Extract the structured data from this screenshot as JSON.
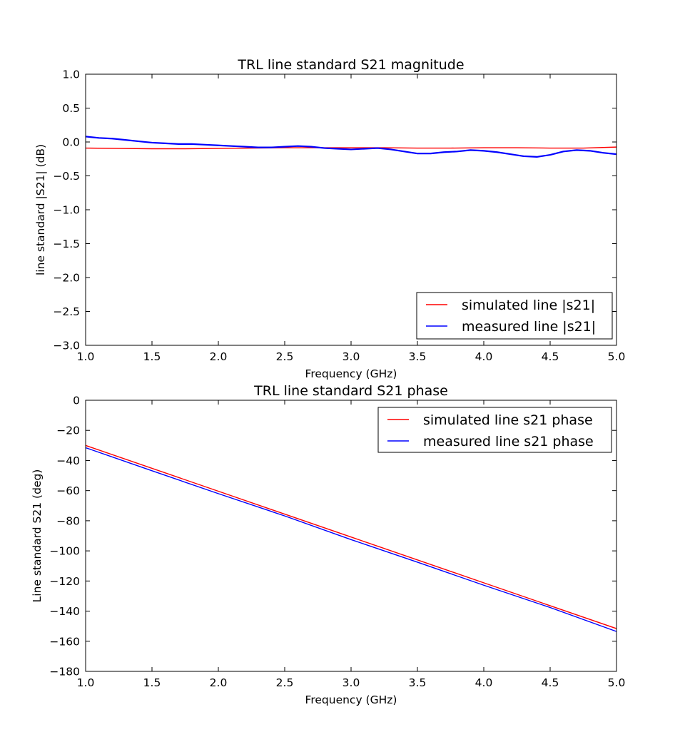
{
  "chart_data": [
    {
      "type": "line",
      "title": "TRL line standard S21 magnitude",
      "xlabel": "Frequency (GHz)",
      "ylabel": "line standard |S21| (dB)",
      "xlim": [
        1.0,
        5.0
      ],
      "ylim": [
        -3.0,
        1.0
      ],
      "xticks": [
        "1.0",
        "1.5",
        "2.0",
        "2.5",
        "3.0",
        "3.5",
        "4.0",
        "4.5",
        "5.0"
      ],
      "yticks": [
        "1.0",
        "0.5",
        "0.0",
        "−0.5",
        "−1.0",
        "−1.5",
        "−2.0",
        "−2.5",
        "−3.0"
      ],
      "grid": false,
      "legend_position": "lower-right",
      "series": [
        {
          "name": "simulated line |s21|",
          "color": "#ff0000",
          "x": [
            1.0,
            1.25,
            1.5,
            1.75,
            2.0,
            2.25,
            2.5,
            2.75,
            3.0,
            3.25,
            3.5,
            3.75,
            4.0,
            4.25,
            4.5,
            4.75,
            5.0
          ],
          "y": [
            -0.09,
            -0.095,
            -0.1,
            -0.1,
            -0.095,
            -0.09,
            -0.085,
            -0.085,
            -0.085,
            -0.085,
            -0.09,
            -0.09,
            -0.085,
            -0.085,
            -0.09,
            -0.09,
            -0.075
          ]
        },
        {
          "name": "measured line |s21|",
          "color": "#0000ff",
          "x": [
            1.0,
            1.1,
            1.2,
            1.3,
            1.4,
            1.5,
            1.6,
            1.7,
            1.8,
            1.9,
            2.0,
            2.1,
            2.2,
            2.3,
            2.4,
            2.5,
            2.6,
            2.7,
            2.8,
            2.9,
            3.0,
            3.1,
            3.2,
            3.3,
            3.4,
            3.5,
            3.6,
            3.7,
            3.8,
            3.9,
            4.0,
            4.1,
            4.2,
            4.3,
            4.4,
            4.5,
            4.6,
            4.7,
            4.8,
            4.9,
            5.0
          ],
          "y": [
            0.08,
            0.06,
            0.05,
            0.03,
            0.01,
            -0.01,
            -0.02,
            -0.03,
            -0.03,
            -0.04,
            -0.05,
            -0.06,
            -0.07,
            -0.08,
            -0.08,
            -0.07,
            -0.06,
            -0.07,
            -0.09,
            -0.1,
            -0.11,
            -0.1,
            -0.09,
            -0.11,
            -0.14,
            -0.17,
            -0.17,
            -0.15,
            -0.14,
            -0.12,
            -0.13,
            -0.15,
            -0.18,
            -0.21,
            -0.22,
            -0.19,
            -0.14,
            -0.12,
            -0.13,
            -0.16,
            -0.18
          ]
        }
      ]
    },
    {
      "type": "line",
      "title": "TRL line standard S21 phase",
      "xlabel": "Frequency (GHz)",
      "ylabel": "Line standard S21 (deg)",
      "xlim": [
        1.0,
        5.0
      ],
      "ylim": [
        -180,
        0
      ],
      "xticks": [
        "1.0",
        "1.5",
        "2.0",
        "2.5",
        "3.0",
        "3.5",
        "4.0",
        "4.5",
        "5.0"
      ],
      "yticks": [
        "0",
        "−20",
        "−40",
        "−60",
        "−80",
        "−100",
        "−120",
        "−140",
        "−160",
        "−180"
      ],
      "grid": false,
      "legend_position": "upper-right",
      "series": [
        {
          "name": "simulated line s21 phase",
          "color": "#ff0000",
          "x": [
            1.0,
            2.0,
            3.0,
            4.0,
            5.0
          ],
          "y": [
            -30.0,
            -60.4,
            -90.8,
            -121.2,
            -151.6
          ]
        },
        {
          "name": "measured line s21 phase",
          "color": "#0000ff",
          "x": [
            1.0,
            1.5,
            2.0,
            2.5,
            3.0,
            3.5,
            4.0,
            4.5,
            5.0
          ],
          "y": [
            -31.5,
            -46.8,
            -62.0,
            -76.8,
            -92.5,
            -107.5,
            -122.8,
            -137.6,
            -153.5
          ]
        }
      ]
    }
  ]
}
